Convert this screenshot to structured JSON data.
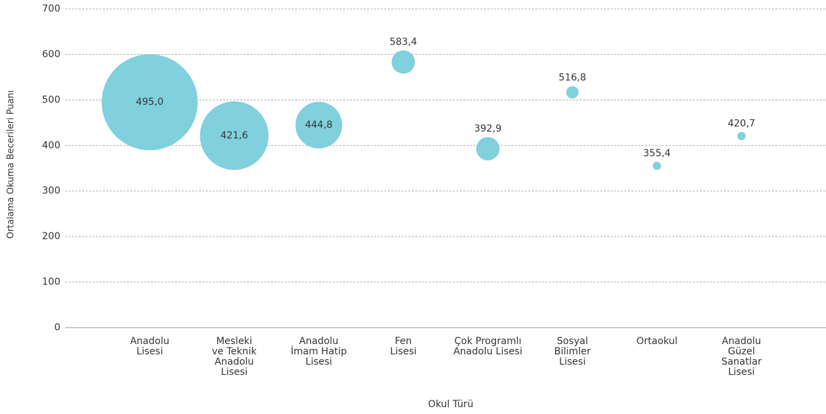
{
  "chart_data": {
    "type": "bubble",
    "x_label": "Okul Türü",
    "y_label": "Ortalama Okuma Becerileri Puanı",
    "categories": [
      "Anadolu\nLisesi",
      "Mesleki\nve Teknik\nAnadolu\nLisesi",
      "Anadolu\nİmam Hatip\nLisesi",
      "Fen\nLisesi",
      "Çok Programlı\nAnadolu Lisesi",
      "Sosyal\nBilimler\nLisesi",
      "Ortaokul",
      "Anadolu\nGüzel\nSanatlar\nLisesi"
    ],
    "values": [
      495.0,
      421.6,
      444.8,
      583.4,
      392.9,
      516.8,
      355.4,
      420.7
    ],
    "value_labels": [
      "495,0",
      "421,6",
      "444,8",
      "583,4",
      "392,9",
      "516,8",
      "355,4",
      "420,7"
    ],
    "sizes": [
      4900,
      2500,
      1156,
      289,
      289,
      81,
      36,
      36
    ],
    "color": "#80d0de",
    "ylim": [
      0,
      700
    ],
    "yticks": [
      0,
      100,
      200,
      300,
      400,
      500,
      600,
      700
    ],
    "grid": true
  }
}
